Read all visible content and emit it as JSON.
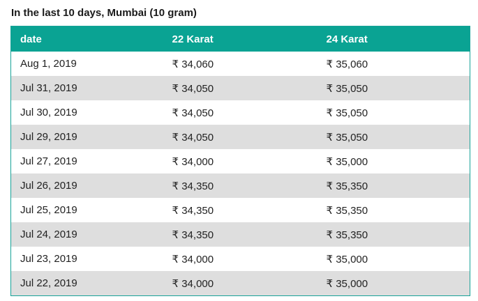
{
  "heading": "In the last 10 days, Mumbai (10 gram)",
  "table": {
    "columns": [
      "date",
      "22 Karat",
      "24 Karat"
    ],
    "rows": [
      [
        "Aug 1, 2019",
        "₹ 34,060",
        "₹ 35,060"
      ],
      [
        "Jul 31, 2019",
        "₹ 34,050",
        "₹ 35,050"
      ],
      [
        "Jul 30, 2019",
        "₹ 34,050",
        "₹ 35,050"
      ],
      [
        "Jul 29, 2019",
        "₹ 34,050",
        "₹ 35,050"
      ],
      [
        "Jul 27, 2019",
        "₹ 34,000",
        "₹ 35,000"
      ],
      [
        "Jul 26, 2019",
        "₹ 34,350",
        "₹ 35,350"
      ],
      [
        "Jul 25, 2019",
        "₹ 34,350",
        "₹ 35,350"
      ],
      [
        "Jul 24, 2019",
        "₹ 34,350",
        "₹ 35,350"
      ],
      [
        "Jul 23, 2019",
        "₹ 34,000",
        "₹ 35,000"
      ],
      [
        "Jul 22, 2019",
        "₹ 34,000",
        "₹ 35,000"
      ]
    ]
  },
  "colors": {
    "header_bg": "#0aa393",
    "header_text": "#ffffff",
    "stripe_bg": "#dedede",
    "row_bg": "#ffffff",
    "border": "#17a297"
  }
}
